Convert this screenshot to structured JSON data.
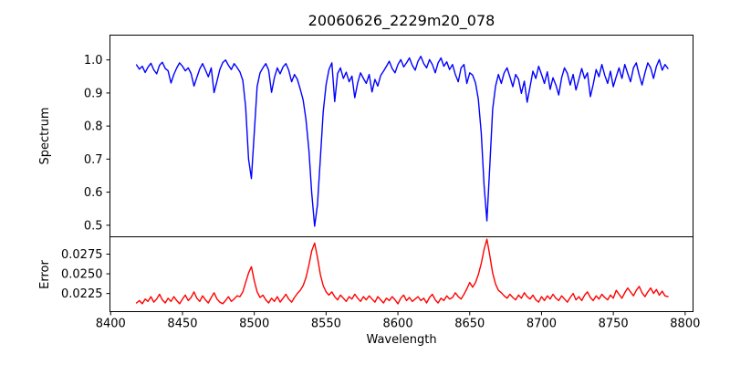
{
  "figure": {
    "title": "20060626_2229m20_078",
    "background_color": "#ffffff",
    "spine_color": "#000000"
  },
  "chart_data": {
    "type": "line",
    "title": "20060626_2229m20_078",
    "xlabel": "Wavelength",
    "xlim": [
      8399.5,
      8805.5
    ],
    "x_ticks": [
      "8400",
      "8450",
      "8500",
      "8550",
      "8600",
      "8650",
      "8700",
      "8750",
      "8800"
    ],
    "x_start": 8418,
    "x_step": 2,
    "grid": false,
    "legend": "none",
    "annotations": {
      "absorption_line_centers": [
        8498,
        8542,
        8662
      ],
      "absorption_line_depths": [
        0.64,
        0.5,
        0.51
      ],
      "error_peak_values": [
        0.0259,
        0.0289,
        0.0294
      ]
    },
    "panels": [
      {
        "ylabel": "Spectrum",
        "ylim": [
          0.465,
          1.075
        ],
        "y_ticks": [
          "0.5",
          "0.6",
          "0.7",
          "0.8",
          "0.9",
          "1.0"
        ],
        "series": {
          "name": "spectrum",
          "color": "#0000ff",
          "values": [
            0.985,
            0.972,
            0.981,
            0.962,
            0.978,
            0.99,
            0.97,
            0.958,
            0.984,
            0.993,
            0.974,
            0.967,
            0.93,
            0.956,
            0.976,
            0.991,
            0.981,
            0.967,
            0.976,
            0.959,
            0.921,
            0.947,
            0.973,
            0.989,
            0.969,
            0.949,
            0.976,
            0.901,
            0.936,
            0.971,
            0.992,
            1.0,
            0.984,
            0.971,
            0.989,
            0.977,
            0.964,
            0.938,
            0.858,
            0.7,
            0.641,
            0.782,
            0.92,
            0.961,
            0.976,
            0.989,
            0.969,
            0.902,
            0.946,
            0.976,
            0.958,
            0.979,
            0.989,
            0.969,
            0.934,
            0.956,
            0.941,
            0.912,
            0.879,
            0.82,
            0.728,
            0.598,
            0.497,
            0.562,
            0.703,
            0.843,
            0.926,
            0.971,
            0.991,
            0.874,
            0.959,
            0.976,
            0.944,
            0.963,
            0.934,
            0.951,
            0.886,
            0.931,
            0.961,
            0.944,
            0.929,
            0.956,
            0.903,
            0.941,
            0.921,
            0.953,
            0.966,
            0.981,
            0.996,
            0.974,
            0.961,
            0.986,
            1.001,
            0.979,
            0.991,
            1.006,
            0.984,
            0.969,
            0.996,
            1.011,
            0.989,
            0.976,
            1.001,
            0.986,
            0.961,
            0.991,
            1.006,
            0.981,
            0.994,
            0.971,
            0.986,
            0.956,
            0.934,
            0.976,
            0.986,
            0.929,
            0.961,
            0.954,
            0.931,
            0.881,
            0.779,
            0.621,
            0.513,
            0.681,
            0.851,
            0.921,
            0.956,
            0.929,
            0.961,
            0.976,
            0.949,
            0.919,
            0.956,
            0.941,
            0.899,
            0.936,
            0.872,
            0.919,
            0.966,
            0.944,
            0.981,
            0.956,
            0.929,
            0.964,
            0.911,
            0.946,
            0.924,
            0.894,
            0.946,
            0.976,
            0.959,
            0.924,
            0.956,
            0.909,
            0.941,
            0.974,
            0.944,
            0.961,
            0.889,
            0.926,
            0.971,
            0.949,
            0.986,
            0.954,
            0.929,
            0.966,
            0.919,
            0.949,
            0.976,
            0.944,
            0.986,
            0.959,
            0.934,
            0.976,
            0.991,
            0.954,
            0.924,
            0.961,
            0.991,
            0.976,
            0.944,
            0.981,
            1.001,
            0.969,
            0.986,
            0.974
          ]
        }
      },
      {
        "ylabel": "Error",
        "ylim": [
          0.0202,
          0.0297
        ],
        "y_ticks": [
          "0.0225",
          "0.0250",
          "0.0275"
        ],
        "series": {
          "name": "error",
          "color": "#ff0000",
          "values": [
            0.0213,
            0.0216,
            0.0212,
            0.0218,
            0.0215,
            0.0221,
            0.0214,
            0.0218,
            0.0224,
            0.0217,
            0.0213,
            0.0219,
            0.0215,
            0.0221,
            0.0216,
            0.0212,
            0.0218,
            0.0223,
            0.0216,
            0.022,
            0.0227,
            0.0219,
            0.0215,
            0.0222,
            0.0217,
            0.0213,
            0.022,
            0.0226,
            0.0218,
            0.0214,
            0.0212,
            0.0216,
            0.0221,
            0.0215,
            0.0218,
            0.0222,
            0.0221,
            0.0227,
            0.0239,
            0.0251,
            0.0259,
            0.0241,
            0.0227,
            0.022,
            0.0223,
            0.0217,
            0.0213,
            0.0219,
            0.0215,
            0.0221,
            0.0214,
            0.0219,
            0.0224,
            0.0218,
            0.0214,
            0.022,
            0.0225,
            0.0229,
            0.0235,
            0.0245,
            0.0261,
            0.0279,
            0.0289,
            0.0271,
            0.0249,
            0.0235,
            0.0227,
            0.0223,
            0.0227,
            0.0221,
            0.0217,
            0.0223,
            0.0219,
            0.0215,
            0.0221,
            0.0218,
            0.0224,
            0.0219,
            0.0215,
            0.0221,
            0.0217,
            0.0222,
            0.0218,
            0.0214,
            0.0221,
            0.0217,
            0.0213,
            0.0219,
            0.0216,
            0.0221,
            0.0217,
            0.0212,
            0.0219,
            0.0223,
            0.0216,
            0.022,
            0.0215,
            0.0218,
            0.0221,
            0.0216,
            0.0219,
            0.0213,
            0.022,
            0.0224,
            0.0217,
            0.0213,
            0.0219,
            0.0216,
            0.0222,
            0.0218,
            0.022,
            0.0226,
            0.0221,
            0.0218,
            0.0224,
            0.0231,
            0.0239,
            0.0233,
            0.0239,
            0.0249,
            0.0263,
            0.0281,
            0.0294,
            0.0273,
            0.0251,
            0.0237,
            0.0229,
            0.0226,
            0.0222,
            0.0219,
            0.0224,
            0.022,
            0.0217,
            0.0223,
            0.0219,
            0.0226,
            0.0221,
            0.0218,
            0.0223,
            0.0217,
            0.0214,
            0.0221,
            0.0216,
            0.0222,
            0.0218,
            0.0224,
            0.0219,
            0.0216,
            0.0222,
            0.0218,
            0.0214,
            0.022,
            0.0225,
            0.0217,
            0.0221,
            0.0216,
            0.0223,
            0.0227,
            0.022,
            0.0216,
            0.0222,
            0.0218,
            0.0224,
            0.022,
            0.0217,
            0.0223,
            0.0219,
            0.0229,
            0.0224,
            0.0219,
            0.0226,
            0.0232,
            0.0227,
            0.0222,
            0.0229,
            0.0234,
            0.0226,
            0.0221,
            0.0227,
            0.0232,
            0.0225,
            0.023,
            0.0223,
            0.0228,
            0.0222,
            0.0221
          ]
        }
      }
    ]
  }
}
